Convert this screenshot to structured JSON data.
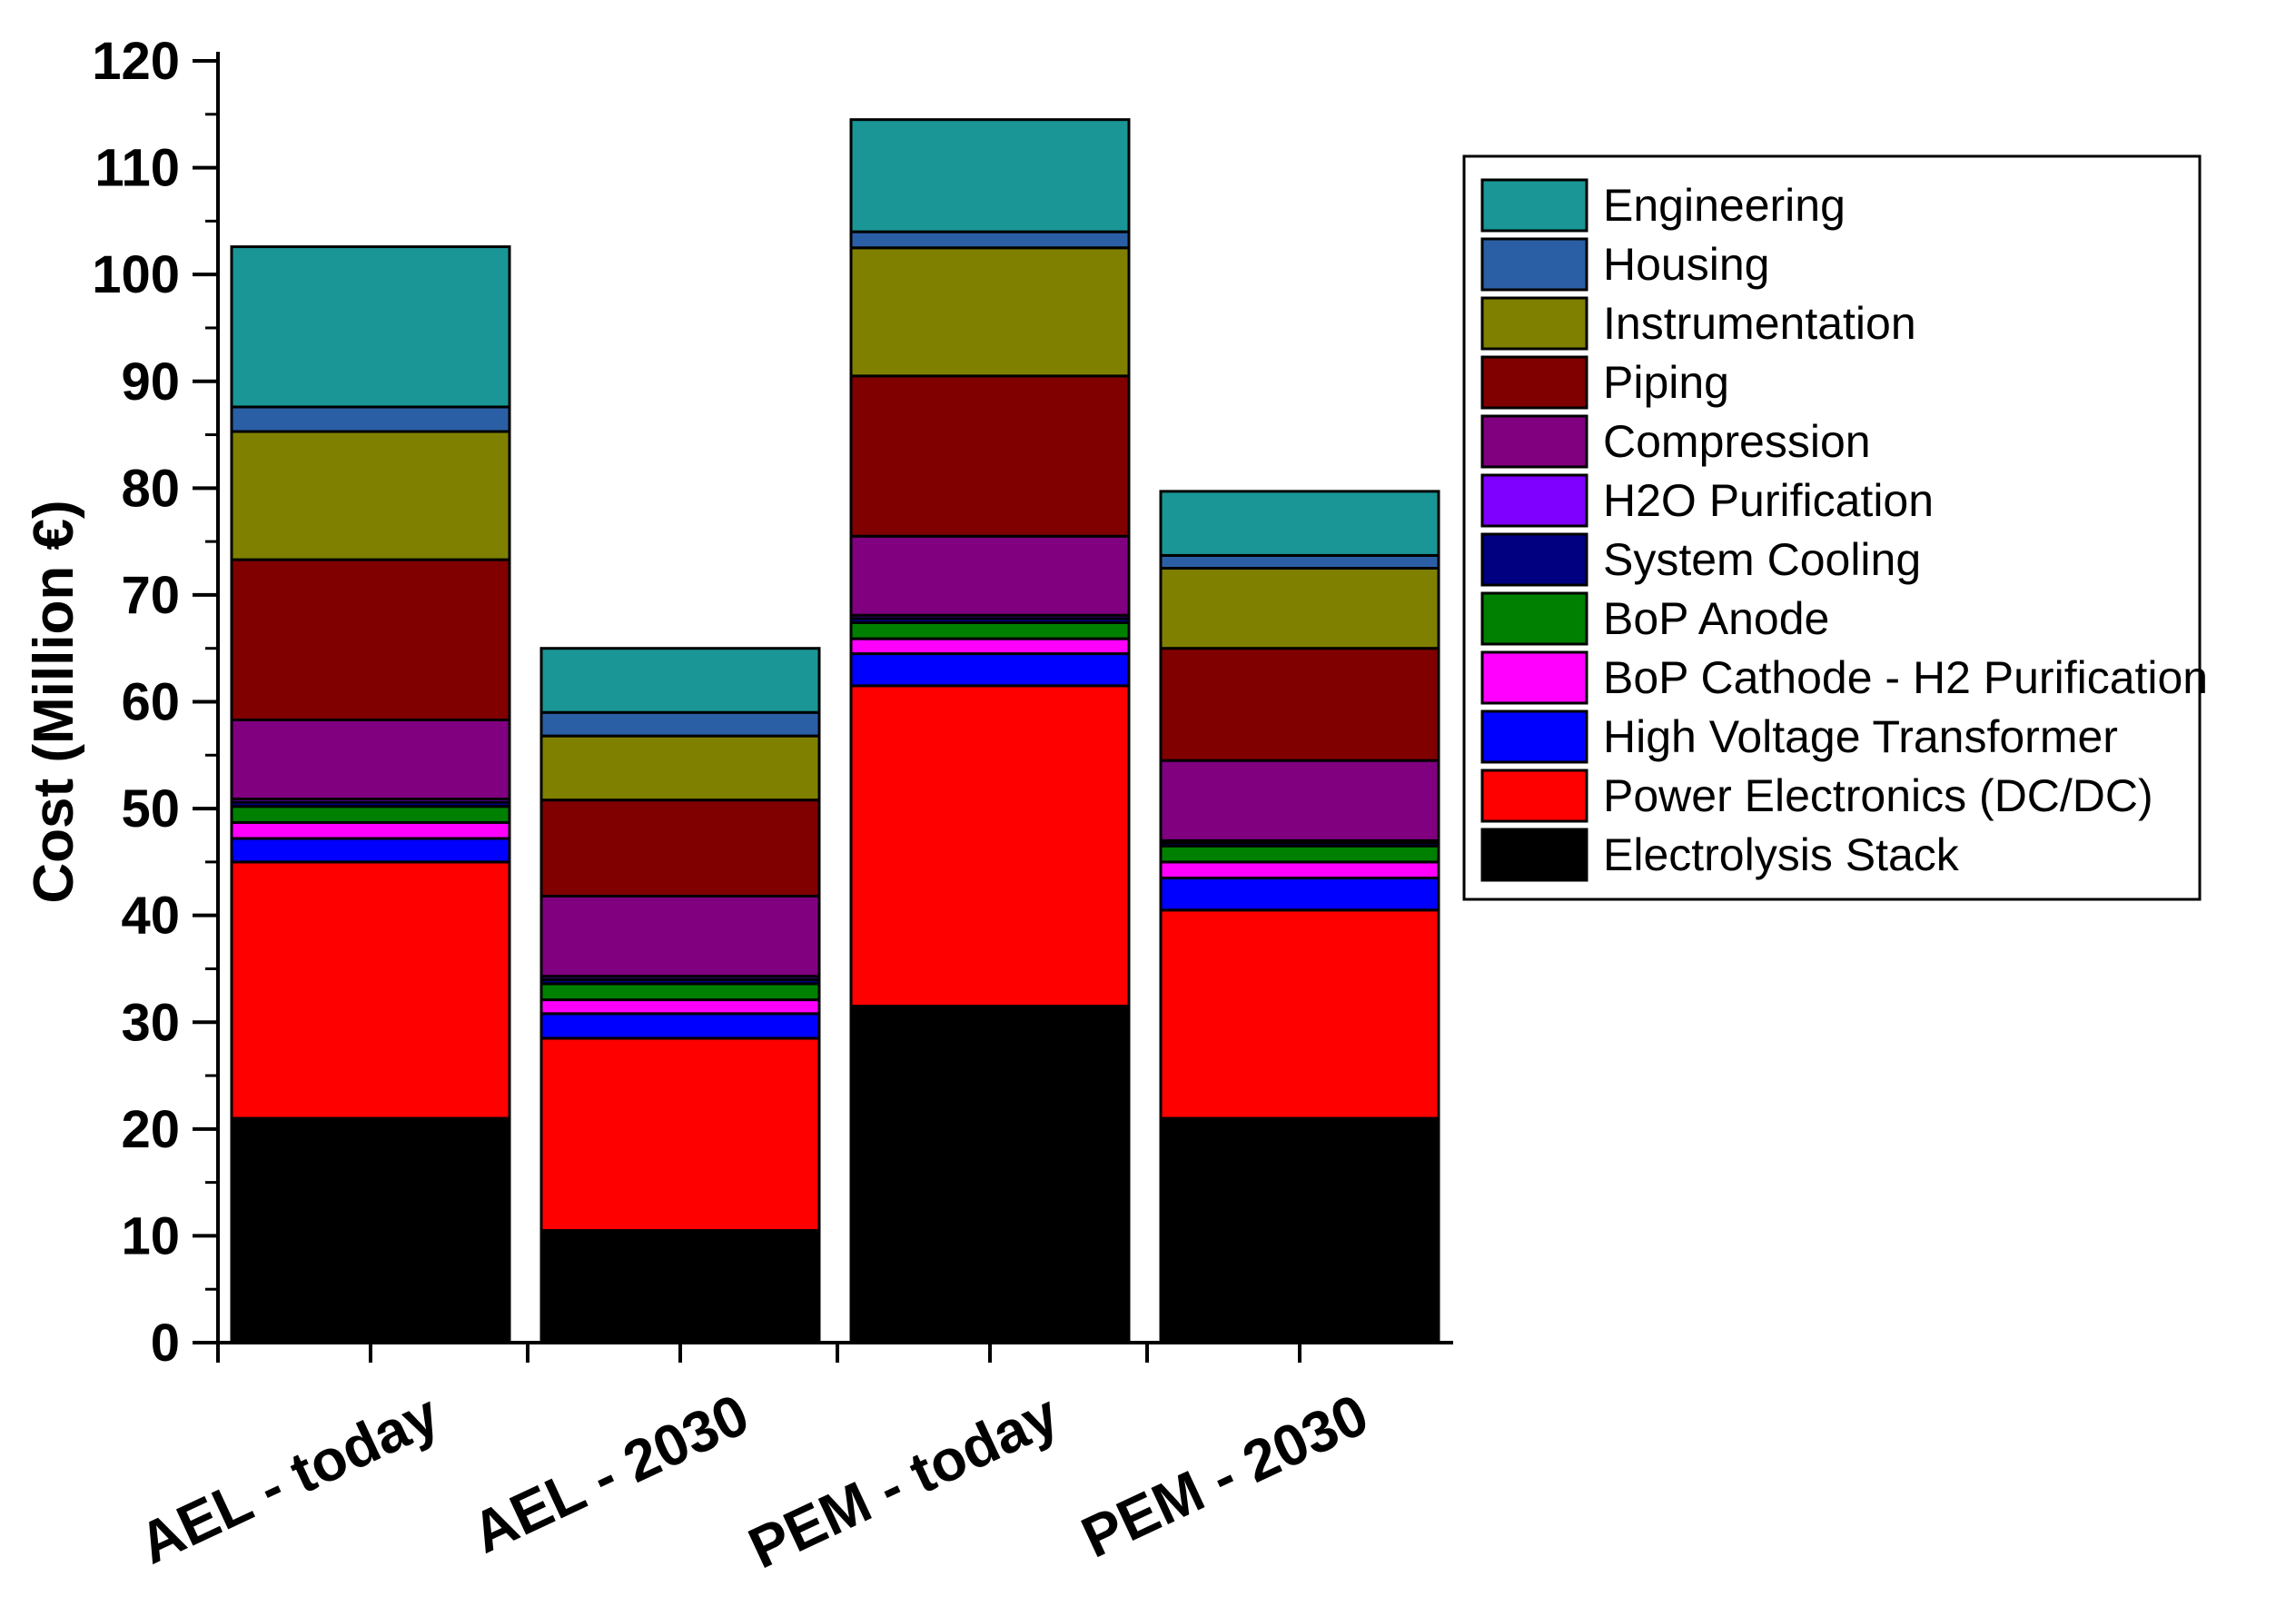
{
  "chart_data": {
    "type": "bar",
    "stacked": true,
    "title": "",
    "xlabel": "",
    "ylabel": "Cost (Million €)",
    "ylim": [
      0,
      120
    ],
    "yticks": [
      0,
      10,
      20,
      30,
      40,
      50,
      60,
      70,
      80,
      90,
      100,
      110,
      120
    ],
    "categories": [
      "AEL - today",
      "AEL - 2030",
      "PEM - today",
      "PEM - 2030"
    ],
    "legend_position": "right",
    "series": [
      {
        "name": "Electrolysis Stack",
        "color": "#000000",
        "values": [
          21.0,
          10.5,
          31.5,
          21.0
        ]
      },
      {
        "name": "Power Electronics (DC/DC)",
        "color": "#ff0000",
        "values": [
          24.0,
          18.0,
          30.0,
          19.5
        ]
      },
      {
        "name": "High Voltage Transformer",
        "color": "#0000ff",
        "values": [
          2.2,
          2.3,
          3.0,
          3.0
        ]
      },
      {
        "name": "BoP Cathode - H2 Purification",
        "color": "#ff00ff",
        "values": [
          1.5,
          1.3,
          1.4,
          1.5
        ]
      },
      {
        "name": "BoP Anode",
        "color": "#008000",
        "values": [
          1.5,
          1.5,
          1.5,
          1.5
        ]
      },
      {
        "name": "System Cooling",
        "color": "#000080",
        "values": [
          0.4,
          0.4,
          0.4,
          0.3
        ]
      },
      {
        "name": "H2O Purification",
        "color": "#8000ff",
        "values": [
          0.3,
          0.3,
          0.3,
          0.2
        ]
      },
      {
        "name": "Compression",
        "color": "#800080",
        "values": [
          7.4,
          7.5,
          7.4,
          7.5
        ]
      },
      {
        "name": "Piping",
        "color": "#800000",
        "values": [
          15.0,
          9.0,
          15.0,
          10.5
        ]
      },
      {
        "name": "Instrumentation",
        "color": "#808000",
        "values": [
          12.0,
          6.0,
          12.0,
          7.5
        ]
      },
      {
        "name": "Housing",
        "color": "#2b5fa5",
        "values": [
          2.3,
          2.2,
          1.5,
          1.2
        ]
      },
      {
        "name": "Engineering",
        "color": "#1a9696",
        "values": [
          15.0,
          6.0,
          10.5,
          6.0
        ]
      }
    ]
  }
}
